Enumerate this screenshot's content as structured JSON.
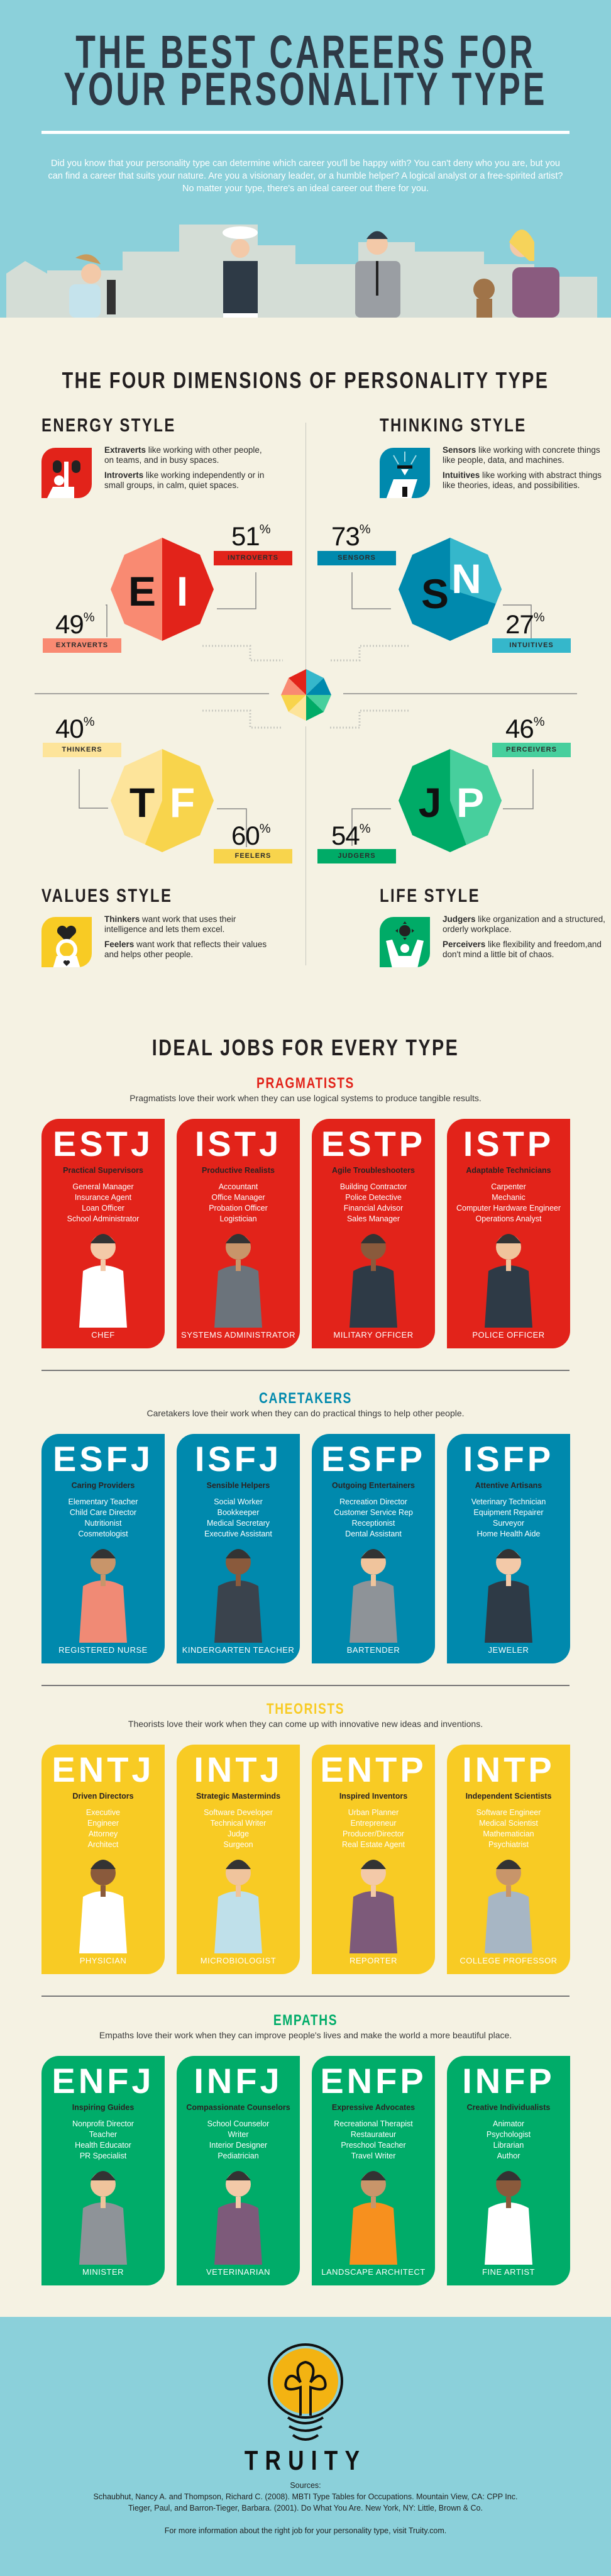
{
  "colors": {
    "header_bg": "#8bd0da",
    "page_bg": "#f5f2e3",
    "red": "#e2231a",
    "teal": "#0089ad",
    "yellow": "#f8cb24",
    "green": "#00ac69"
  },
  "header": {
    "title_line1": "THE BEST CAREERS FOR",
    "title_line2": "YOUR PERSONALITY TYPE",
    "intro": "Did you know that your personality type can determine which career you'll be happy with? You can't deny who you are, but you can find a career that suits your nature. Are you a visionary leader, or a humble helper? A logical analyst or a free-spirited artist? No matter your type, there's an ideal career out there for you."
  },
  "dimensions": {
    "title": "THE FOUR DIMENSIONS OF PERSONALITY TYPE",
    "percent_sign": "%",
    "energy": {
      "title": "ENERGY STYLE",
      "icon": "person-with-binoculars-icon",
      "p1_bold": "Extraverts",
      "p1": " like working with other people, on teams, and in busy spaces.",
      "p2_bold": "Introverts",
      "p2": " like working independently or in small groups, in calm, quiet spaces.",
      "letters": [
        "E",
        "I"
      ],
      "a": {
        "label": "EXTRAVERTS",
        "value": 49
      },
      "b": {
        "label": "INTROVERTS",
        "value": 51
      }
    },
    "thinking": {
      "title": "THINKING STYLE",
      "icon": "graduate-idea-icon",
      "p1_bold": "Sensors",
      "p1": " like working with concrete things like people, data, and machines.",
      "p2_bold": "Intuitives",
      "p2": " like working with abstract things like theories, ideas, and possibilities.",
      "letters": [
        "S",
        "N"
      ],
      "a": {
        "label": "SENSORS",
        "value": 73
      },
      "b": {
        "label": "INTUITIVES",
        "value": 27
      }
    },
    "values": {
      "title": "VALUES STYLE",
      "icon": "person-holding-heart-icon",
      "p1_bold": "Thinkers",
      "p1": " want work that uses their intelligence and lets them excel.",
      "p2_bold": "Feelers",
      "p2": " want work that reflects their values and helps other people.",
      "letters": [
        "T",
        "F"
      ],
      "a": {
        "label": "THINKERS",
        "value": 40
      },
      "b": {
        "label": "FEELERS",
        "value": 60
      }
    },
    "life": {
      "title": "LIFE STYLE",
      "icon": "person-with-sun-icon",
      "p1_bold": "Judgers",
      "p1": " like organization and a structured, orderly workplace.",
      "p2_bold": "Perceivers",
      "p2": " like flexibility and freedom,and don't mind a little bit of chaos.",
      "letters": [
        "J",
        "P"
      ],
      "a": {
        "label": "JUDGERS",
        "value": 54
      },
      "b": {
        "label": "PERCEIVERS",
        "value": 46
      }
    }
  },
  "jobs": {
    "title": "IDEAL JOBS FOR EVERY TYPE",
    "groups": [
      {
        "name": "PRAGMATISTS",
        "color": "#e2231a",
        "description": "Pragmatists love their work when they can use logical systems to produce tangible results.",
        "cards": [
          {
            "type": "ESTJ",
            "subtitle": "Practical Supervisors",
            "jobs": [
              "General Manager",
              "Insurance Agent",
              "Loan Officer",
              "School Administrator"
            ],
            "featured": "CHEF"
          },
          {
            "type": "ISTJ",
            "subtitle": "Productive Realists",
            "jobs": [
              "Accountant",
              "Office Manager",
              "Probation Officer",
              "Logistician"
            ],
            "featured": "SYSTEMS ADMINISTRATOR"
          },
          {
            "type": "ESTP",
            "subtitle": "Agile Troubleshooters",
            "jobs": [
              "Building Contractor",
              "Police Detective",
              "Financial Advisor",
              "Sales Manager"
            ],
            "featured": "MILITARY OFFICER"
          },
          {
            "type": "ISTP",
            "subtitle": "Adaptable Technicians",
            "jobs": [
              "Carpenter",
              "Mechanic",
              "Computer Hardware Engineer",
              "Operations Analyst"
            ],
            "featured": "POLICE OFFICER"
          }
        ]
      },
      {
        "name": "CARETAKERS",
        "color": "#0089ad",
        "description": "Caretakers love their work when they can do practical things to help other people.",
        "cards": [
          {
            "type": "ESFJ",
            "subtitle": "Caring Providers",
            "jobs": [
              "Elementary Teacher",
              "Child Care Director",
              "Nutritionist",
              "Cosmetologist"
            ],
            "featured": "REGISTERED NURSE"
          },
          {
            "type": "ISFJ",
            "subtitle": "Sensible Helpers",
            "jobs": [
              "Social Worker",
              "Bookkeeper",
              "Medical Secretary",
              "Executive Assistant"
            ],
            "featured": "KINDERGARTEN TEACHER"
          },
          {
            "type": "ESFP",
            "subtitle": "Outgoing Entertainers",
            "jobs": [
              "Recreation Director",
              "Customer Service Rep",
              "Receptionist",
              "Dental Assistant"
            ],
            "featured": "BARTENDER"
          },
          {
            "type": "ISFP",
            "subtitle": "Attentive Artisans",
            "jobs": [
              "Veterinary Technician",
              "Equipment Repairer",
              "Surveyor",
              "Home Health Aide"
            ],
            "featured": "JEWELER"
          }
        ]
      },
      {
        "name": "THEORISTS",
        "color": "#f8cb24",
        "description": "Theorists love their work when they can come up with innovative new ideas and inventions.",
        "cards": [
          {
            "type": "ENTJ",
            "subtitle": "Driven Directors",
            "jobs": [
              "Executive",
              "Engineer",
              "Attorney",
              "Architect"
            ],
            "featured": "PHYSICIAN"
          },
          {
            "type": "INTJ",
            "subtitle": "Strategic Masterminds",
            "jobs": [
              "Software Developer",
              "Technical Writer",
              "Judge",
              "Surgeon"
            ],
            "featured": "MICROBIOLOGIST"
          },
          {
            "type": "ENTP",
            "subtitle": "Inspired Inventors",
            "jobs": [
              "Urban Planner",
              "Entrepreneur",
              "Producer/Director",
              "Real Estate Agent"
            ],
            "featured": "REPORTER"
          },
          {
            "type": "INTP",
            "subtitle": "Independent Scientists",
            "jobs": [
              "Software Engineer",
              "Medical Scientist",
              "Mathematician",
              "Psychiatrist"
            ],
            "featured": "COLLEGE PROFESSOR"
          }
        ]
      },
      {
        "name": "EMPATHS",
        "color": "#00ac69",
        "description": "Empaths love their work when they can improve people's lives and make the world a more beautiful place.",
        "cards": [
          {
            "type": "ENFJ",
            "subtitle": "Inspiring Guides",
            "jobs": [
              "Nonprofit Director",
              "Teacher",
              "Health Educator",
              "PR Specialist"
            ],
            "featured": "MINISTER"
          },
          {
            "type": "INFJ",
            "subtitle": "Compassionate Counselors",
            "jobs": [
              "School Counselor",
              "Writer",
              "Interior Designer",
              "Pediatrician"
            ],
            "featured": "VETERINARIAN"
          },
          {
            "type": "ENFP",
            "subtitle": "Expressive Advocates",
            "jobs": [
              "Recreational Therapist",
              "Restaurateur",
              "Preschool Teacher",
              "Travel Writer"
            ],
            "featured": "LANDSCAPE ARCHITECT"
          },
          {
            "type": "INFP",
            "subtitle": "Creative Individualists",
            "jobs": [
              "Animator",
              "Psychologist",
              "Librarian",
              "Author"
            ],
            "featured": "FINE ARTIST"
          }
        ]
      }
    ]
  },
  "footer": {
    "brand": "TRUITY",
    "logo": "lightbulb-logo",
    "sources_label": "Sources:",
    "sources": [
      "Schaubhut, Nancy A. and Thompson, Richard C. (2008). MBTI Type Tables for Occupations. Mountain View, CA: CPP Inc.",
      "Tieger, Paul, and Barron-Tieger, Barbara. (2001). Do What You Are. New York, NY: Little, Brown & Co."
    ],
    "more_info": "For more information about the right job for your personality type, visit Truity.com."
  }
}
